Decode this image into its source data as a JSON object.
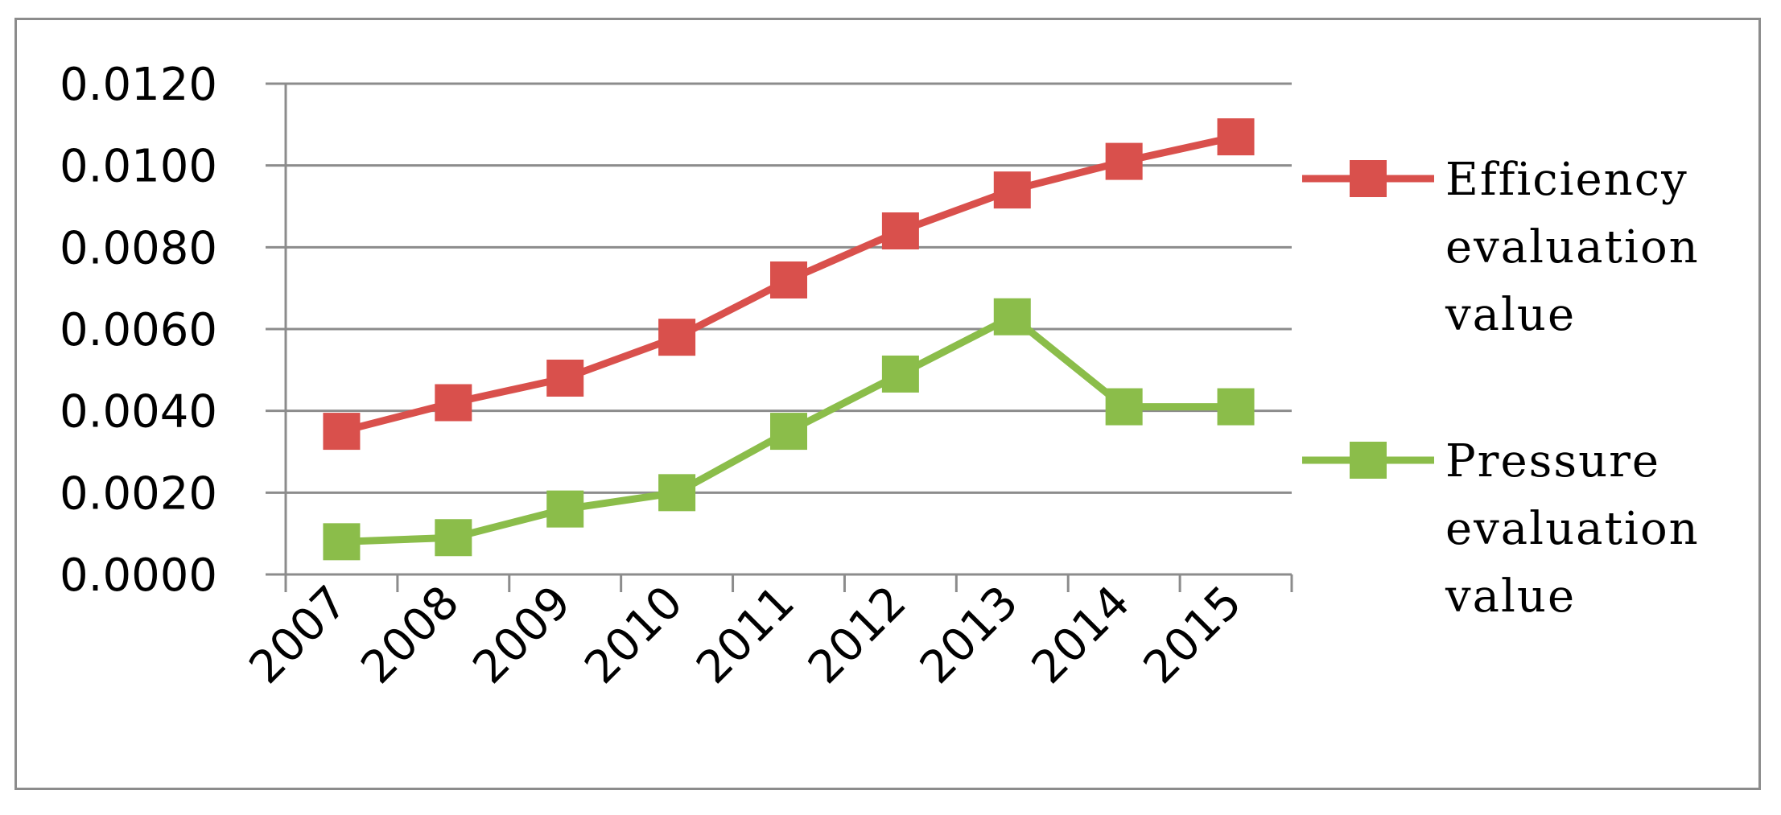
{
  "chart_data": {
    "type": "line",
    "title": "",
    "xlabel": "",
    "ylabel": "",
    "categories": [
      "2007",
      "2008",
      "2009",
      "2010",
      "2011",
      "2012",
      "2013",
      "2014",
      "2015"
    ],
    "ylim": [
      0,
      0.012
    ],
    "y_ticks": [
      "0.0000",
      "0.0020",
      "0.0040",
      "0.0060",
      "0.0080",
      "0.0100",
      "0.0120"
    ],
    "grid": true,
    "legend_position": "right",
    "series": [
      {
        "name_lines": [
          "Efficiency",
          "evaluation",
          "value"
        ],
        "color": "#d9504c",
        "marker": "square",
        "values": [
          0.0035,
          0.0042,
          0.0048,
          0.0058,
          0.0072,
          0.0084,
          0.0094,
          0.0101,
          0.0107
        ]
      },
      {
        "name_lines": [
          "Pressure",
          "evaluation",
          "value"
        ],
        "color": "#8bbd4a",
        "marker": "square",
        "values": [
          0.0008,
          0.0009,
          0.0016,
          0.002,
          0.0035,
          0.0049,
          0.0063,
          0.0041,
          0.0041
        ]
      }
    ]
  }
}
